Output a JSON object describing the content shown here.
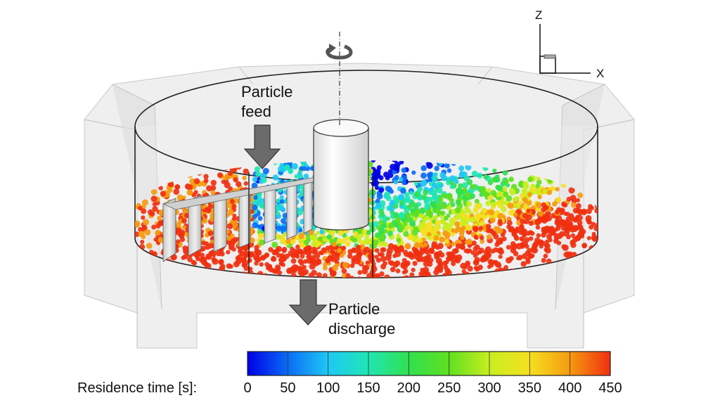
{
  "labels": {
    "feed_line1": "Particle",
    "feed_line2": "feed",
    "discharge_line1": "Particle",
    "discharge_line2": "discharge"
  },
  "axes": {
    "z": "Z",
    "x": "X"
  },
  "colorbar": {
    "title": "Residence time [s]:",
    "min": 0,
    "max": 450,
    "ticks": [
      "0",
      "50",
      "100",
      "150",
      "200",
      "250",
      "300",
      "350",
      "400",
      "450"
    ],
    "colors": [
      "#0000e6",
      "#0a6cf5",
      "#1ec8f5",
      "#20e6b4",
      "#30e050",
      "#60e020",
      "#c8ee20",
      "#f5e020",
      "#f59a10",
      "#f03010"
    ]
  }
}
